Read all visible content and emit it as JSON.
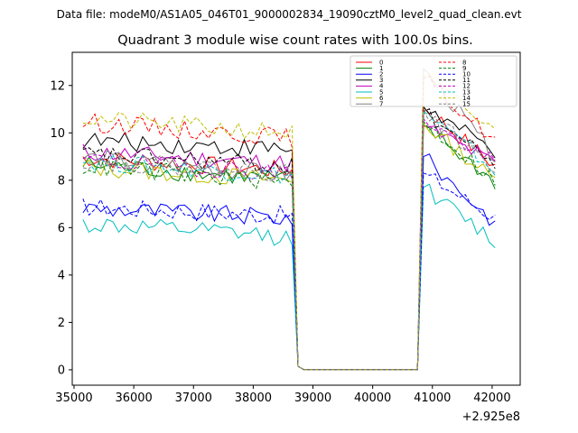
{
  "chart_data": {
    "type": "line",
    "suptitle": "Data file: modeM0/AS1A05_046T01_9000002834_19090cztM0_level2_quad_clean.evt",
    "title": "Quadrant 3 module wise count rates with 100.0s bins.",
    "xlabel": "",
    "ylabel": "",
    "x_offset_label": "+2.925e8",
    "xlim": [
      34970,
      42470
    ],
    "ylim": [
      -0.65,
      13.4
    ],
    "xticks": [
      35000,
      36000,
      37000,
      38000,
      39000,
      40000,
      41000,
      42000
    ],
    "xtick_labels": [
      "35000",
      "36000",
      "37000",
      "38000",
      "39000",
      "40000",
      "41000",
      "42000"
    ],
    "yticks": [
      0,
      2,
      4,
      6,
      8,
      10,
      12
    ],
    "ytick_labels": [
      "0",
      "2",
      "4",
      "6",
      "8",
      "10",
      "12"
    ],
    "bin_width": 100,
    "segment1": {
      "x_start": 35150,
      "n_bins": 36
    },
    "gap": {
      "x": [
        38750,
        38850,
        40750
      ],
      "y": 0.0
    },
    "segment2": {
      "x_start": 40850,
      "n_bins": 13
    },
    "legend": {
      "location": "top-right",
      "columns": 2
    },
    "series": [
      {
        "name": "0",
        "color": "#ff0000",
        "style": "solid",
        "level1": 8.4,
        "level2": 9.4,
        "peak2": 11.1,
        "end2": 8.6
      },
      {
        "name": "1",
        "color": "#008000",
        "style": "solid",
        "level1": 8.0,
        "level2": 9.2,
        "peak2": 10.3,
        "end2": 7.9
      },
      {
        "name": "2",
        "color": "#0000ff",
        "style": "solid",
        "level1": 6.4,
        "level2": 7.2,
        "peak2": 9.0,
        "end2": 6.2
      },
      {
        "name": "3",
        "color": "#000000",
        "style": "solid",
        "level1": 9.3,
        "level2": 10.0,
        "peak2": 11.1,
        "end2": 9.2
      },
      {
        "name": "4",
        "color": "#bf00bf",
        "style": "solid",
        "level1": 8.7,
        "level2": 9.6,
        "peak2": 10.3,
        "end2": 8.7
      },
      {
        "name": "5",
        "color": "#00bfbf",
        "style": "solid",
        "level1": 5.6,
        "level2": 6.6,
        "peak2": 7.7,
        "end2": 5.4
      },
      {
        "name": "6",
        "color": "#bfbf00",
        "style": "solid",
        "level1": 8.0,
        "level2": 9.0,
        "peak2": 10.4,
        "end2": 8.0
      },
      {
        "name": "7",
        "color": "#808080",
        "style": "solid",
        "level1": 8.2,
        "level2": 9.6,
        "peak2": 12.7,
        "end2": 9.0
      },
      {
        "name": "8",
        "color": "#ff0000",
        "style": "dashed",
        "level1": 9.8,
        "level2": 11.0,
        "peak2": 12.3,
        "end2": 9.7
      },
      {
        "name": "9",
        "color": "#008000",
        "style": "dashed",
        "level1": 7.9,
        "level2": 9.2,
        "peak2": 10.5,
        "end2": 8.0
      },
      {
        "name": "10",
        "color": "#0000ff",
        "style": "dashed",
        "level1": 6.5,
        "level2": 7.2,
        "peak2": 8.3,
        "end2": 6.4
      },
      {
        "name": "11",
        "color": "#000000",
        "style": "dashed",
        "level1": 8.6,
        "level2": 9.5,
        "peak2": 10.9,
        "end2": 8.7
      },
      {
        "name": "12",
        "color": "#bf00bf",
        "style": "dashed",
        "level1": 8.3,
        "level2": 9.3,
        "peak2": 10.6,
        "end2": 8.7
      },
      {
        "name": "13",
        "color": "#00bfbf",
        "style": "dashed",
        "level1": 8.2,
        "level2": 9.3,
        "peak2": 10.9,
        "end2": 8.4
      },
      {
        "name": "14",
        "color": "#bfbf00",
        "style": "dashed",
        "level1": 10.0,
        "level2": 11.1,
        "peak2": 12.4,
        "end2": 10.0
      },
      {
        "name": "15",
        "color": "#808080",
        "style": "dashed",
        "level1": 8.3,
        "level2": 9.3,
        "peak2": 10.9,
        "end2": 8.5
      }
    ]
  }
}
